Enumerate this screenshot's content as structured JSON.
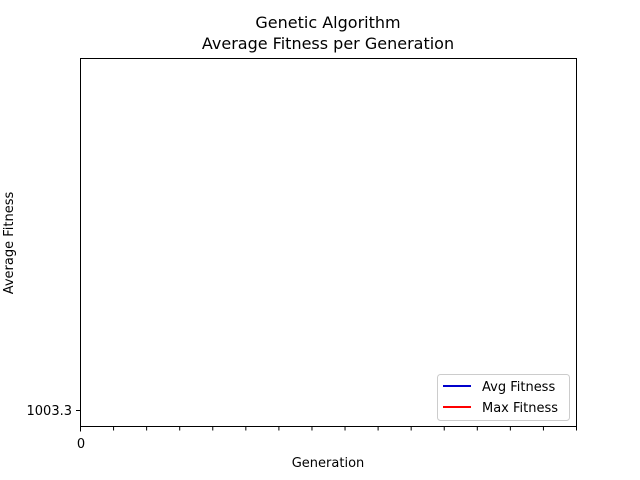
{
  "chart_data": {
    "type": "line",
    "title": "Genetic Algorithm",
    "subtitle": "Average Fitness per Generation",
    "xlabel": "Generation",
    "ylabel": "Average Fitness",
    "x_tick_labels": [
      "0"
    ],
    "x_minor_tick_count": 15,
    "y_tick_labels": [
      "1003.3"
    ],
    "grid": false,
    "legend_position": "lower-right",
    "series": [
      {
        "name": "Avg Fitness",
        "color": "#0000cc",
        "x": [],
        "y": []
      },
      {
        "name": "Max Fitness",
        "color": "#ff0000",
        "x": [],
        "y": []
      }
    ]
  }
}
